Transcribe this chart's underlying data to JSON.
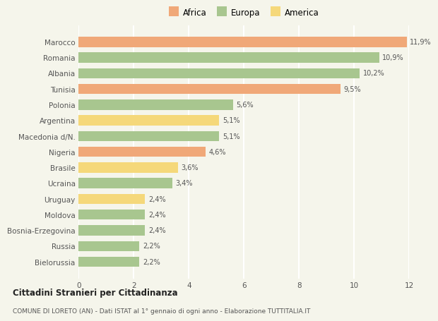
{
  "categories": [
    "Bielorussia",
    "Russia",
    "Bosnia-Erzegovina",
    "Moldova",
    "Uruguay",
    "Ucraina",
    "Brasile",
    "Nigeria",
    "Macedonia d/N.",
    "Argentina",
    "Polonia",
    "Tunisia",
    "Albania",
    "Romania",
    "Marocco"
  ],
  "values": [
    2.2,
    2.2,
    2.4,
    2.4,
    2.4,
    3.4,
    3.6,
    4.6,
    5.1,
    5.1,
    5.6,
    9.5,
    10.2,
    10.9,
    11.9
  ],
  "labels": [
    "2,2%",
    "2,2%",
    "2,4%",
    "2,4%",
    "2,4%",
    "3,4%",
    "3,6%",
    "4,6%",
    "5,1%",
    "5,1%",
    "5,6%",
    "9,5%",
    "10,2%",
    "10,9%",
    "11,9%"
  ],
  "colors": [
    "#a8c68f",
    "#a8c68f",
    "#a8c68f",
    "#a8c68f",
    "#f5d87a",
    "#a8c68f",
    "#f5d87a",
    "#f0a878",
    "#a8c68f",
    "#f5d87a",
    "#a8c68f",
    "#f0a878",
    "#a8c68f",
    "#a8c68f",
    "#f0a878"
  ],
  "legend_labels": [
    "Africa",
    "Europa",
    "America"
  ],
  "legend_colors": [
    "#f0a878",
    "#a8c68f",
    "#f5d87a"
  ],
  "title": "Cittadini Stranieri per Cittadinanza",
  "subtitle": "COMUNE DI LORETO (AN) - Dati ISTAT al 1° gennaio di ogni anno - Elaborazione TUTTITALIA.IT",
  "xlim": [
    0,
    12
  ],
  "xticks": [
    0,
    2,
    4,
    6,
    8,
    10,
    12
  ],
  "background_color": "#f5f5eb",
  "grid_color": "#ffffff",
  "bar_height": 0.65
}
